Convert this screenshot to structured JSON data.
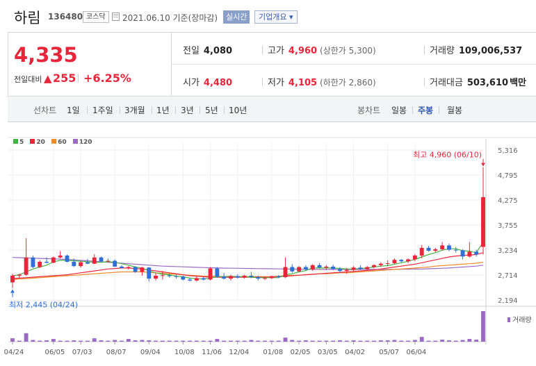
{
  "header": {
    "stock_name": "하림",
    "stock_code": "136480",
    "market": "코스닥",
    "date_text": "2021.06.10 기준(장마감)",
    "realtime_label": "실시간",
    "company_info_label": "기업개요 ▾"
  },
  "summary": {
    "current_price": "4,335",
    "diff_label": "전일대비",
    "diff_arrow": "▲",
    "diff_value": "255",
    "diff_rate": "+6.25%",
    "prev_close": {
      "label": "전일",
      "value": "4,080"
    },
    "high": {
      "label": "고가",
      "value": "4,960",
      "sub": "(상한가 5,300)"
    },
    "volume": {
      "label": "거래량",
      "value": "109,006,537"
    },
    "open": {
      "label": "시가",
      "value": "4,480"
    },
    "low": {
      "label": "저가",
      "value": "4,105",
      "sub": "(하한가 2,860)"
    },
    "amount": {
      "label": "거래대금",
      "value": "503,610",
      "unit": "백만"
    }
  },
  "period_bar": {
    "line_label": "선차트",
    "line_items": [
      "1일",
      "1주일",
      "3개월",
      "1년",
      "3년",
      "5년",
      "10년"
    ],
    "candle_label": "봉차트",
    "candle_items": [
      "일봉",
      "주봉",
      "월봉"
    ],
    "active_candle": "주봉"
  },
  "colors": {
    "up": "#e8253b",
    "down": "#2f6fd6",
    "ma5": "#44b244",
    "ma20": "#e8253b",
    "ma60": "#f08a24",
    "ma120": "#9b6bc4",
    "volume": "#9b6bc4"
  },
  "chart_data": {
    "type": "candlestick",
    "legend": [
      {
        "name": "5",
        "color": "#44b244"
      },
      {
        "name": "20",
        "color": "#e8253b"
      },
      {
        "name": "60",
        "color": "#f08a24"
      },
      {
        "name": "120",
        "color": "#9b6bc4"
      }
    ],
    "y_ticks": [
      "5,316",
      "4,795",
      "4,275",
      "3,755",
      "3,234",
      "2,714",
      "2,194"
    ],
    "ylim": [
      2194,
      5316
    ],
    "x_labels": [
      "04/24",
      "06/05",
      "07/03",
      "08/07",
      "09/04",
      "10/08",
      "11/06",
      "12/04",
      "01/08",
      "02/05",
      "03/05",
      "04/02",
      "05/07",
      "06/04"
    ],
    "max_annotation": "최고 4,960 (06/10)",
    "min_annotation": "최저 2,445 (04/24)",
    "volume_label": "거래량",
    "candles": [
      {
        "o": 2560,
        "h": 2740,
        "l": 2445,
        "c": 2700
      },
      {
        "o": 2700,
        "h": 2740,
        "l": 2650,
        "c": 2720
      },
      {
        "o": 2720,
        "h": 3480,
        "l": 2700,
        "c": 3080
      },
      {
        "o": 3080,
        "h": 3120,
        "l": 2860,
        "c": 2880
      },
      {
        "o": 2880,
        "h": 3020,
        "l": 2860,
        "c": 2990
      },
      {
        "o": 2990,
        "h": 3080,
        "l": 2960,
        "c": 2970
      },
      {
        "o": 2970,
        "h": 3100,
        "l": 2960,
        "c": 3080
      },
      {
        "o": 3080,
        "h": 3210,
        "l": 3060,
        "c": 3120
      },
      {
        "o": 3120,
        "h": 3140,
        "l": 2980,
        "c": 2990
      },
      {
        "o": 2990,
        "h": 3060,
        "l": 2880,
        "c": 2900
      },
      {
        "o": 2900,
        "h": 3000,
        "l": 2870,
        "c": 2980
      },
      {
        "o": 2980,
        "h": 3050,
        "l": 2940,
        "c": 2950
      },
      {
        "o": 2950,
        "h": 3150,
        "l": 2940,
        "c": 3080
      },
      {
        "o": 3080,
        "h": 3100,
        "l": 2980,
        "c": 3000
      },
      {
        "o": 3000,
        "h": 3060,
        "l": 2980,
        "c": 3010
      },
      {
        "o": 3010,
        "h": 3040,
        "l": 2880,
        "c": 2890
      },
      {
        "o": 2890,
        "h": 2920,
        "l": 2850,
        "c": 2860
      },
      {
        "o": 2860,
        "h": 2900,
        "l": 2830,
        "c": 2880
      },
      {
        "o": 2880,
        "h": 2900,
        "l": 2760,
        "c": 2780
      },
      {
        "o": 2780,
        "h": 2890,
        "l": 2700,
        "c": 2870
      },
      {
        "o": 2870,
        "h": 2880,
        "l": 2580,
        "c": 2640
      },
      {
        "o": 2640,
        "h": 2760,
        "l": 2600,
        "c": 2700
      },
      {
        "o": 2700,
        "h": 2800,
        "l": 2620,
        "c": 2710
      },
      {
        "o": 2710,
        "h": 2740,
        "l": 2660,
        "c": 2690
      },
      {
        "o": 2690,
        "h": 2720,
        "l": 2640,
        "c": 2680
      },
      {
        "o": 2680,
        "h": 2700,
        "l": 2600,
        "c": 2620
      },
      {
        "o": 2620,
        "h": 2660,
        "l": 2580,
        "c": 2600
      },
      {
        "o": 2600,
        "h": 2700,
        "l": 2580,
        "c": 2650
      },
      {
        "o": 2650,
        "h": 2670,
        "l": 2600,
        "c": 2620
      },
      {
        "o": 2620,
        "h": 2880,
        "l": 2600,
        "c": 2850
      },
      {
        "o": 2850,
        "h": 2880,
        "l": 2660,
        "c": 2680
      },
      {
        "o": 2680,
        "h": 2760,
        "l": 2620,
        "c": 2640
      },
      {
        "o": 2640,
        "h": 2720,
        "l": 2600,
        "c": 2690
      },
      {
        "o": 2690,
        "h": 2730,
        "l": 2640,
        "c": 2660
      },
      {
        "o": 2660,
        "h": 2720,
        "l": 2640,
        "c": 2700
      },
      {
        "o": 2700,
        "h": 2780,
        "l": 2650,
        "c": 2670
      },
      {
        "o": 2670,
        "h": 2700,
        "l": 2600,
        "c": 2640
      },
      {
        "o": 2640,
        "h": 2680,
        "l": 2610,
        "c": 2650
      },
      {
        "o": 2650,
        "h": 2700,
        "l": 2630,
        "c": 2690
      },
      {
        "o": 2690,
        "h": 2710,
        "l": 2650,
        "c": 2670
      },
      {
        "o": 2670,
        "h": 3080,
        "l": 2650,
        "c": 2880
      },
      {
        "o": 2880,
        "h": 2940,
        "l": 2760,
        "c": 2790
      },
      {
        "o": 2790,
        "h": 2900,
        "l": 2770,
        "c": 2880
      },
      {
        "o": 2880,
        "h": 2920,
        "l": 2800,
        "c": 2830
      },
      {
        "o": 2830,
        "h": 2940,
        "l": 2800,
        "c": 2920
      },
      {
        "o": 2920,
        "h": 2960,
        "l": 2850,
        "c": 2870
      },
      {
        "o": 2870,
        "h": 2920,
        "l": 2820,
        "c": 2890
      },
      {
        "o": 2890,
        "h": 2930,
        "l": 2820,
        "c": 2840
      },
      {
        "o": 2840,
        "h": 2880,
        "l": 2760,
        "c": 2800
      },
      {
        "o": 2800,
        "h": 2860,
        "l": 2740,
        "c": 2820
      },
      {
        "o": 2820,
        "h": 2900,
        "l": 2780,
        "c": 2870
      },
      {
        "o": 2870,
        "h": 2920,
        "l": 2820,
        "c": 2840
      },
      {
        "o": 2840,
        "h": 2900,
        "l": 2820,
        "c": 2880
      },
      {
        "o": 2880,
        "h": 2940,
        "l": 2850,
        "c": 2920
      },
      {
        "o": 2920,
        "h": 2980,
        "l": 2880,
        "c": 2950
      },
      {
        "o": 2950,
        "h": 3020,
        "l": 2900,
        "c": 2960
      },
      {
        "o": 2960,
        "h": 3060,
        "l": 2940,
        "c": 3030
      },
      {
        "o": 3030,
        "h": 3050,
        "l": 2980,
        "c": 3000
      },
      {
        "o": 3000,
        "h": 3060,
        "l": 2960,
        "c": 3040
      },
      {
        "o": 3040,
        "h": 3150,
        "l": 3000,
        "c": 3120
      },
      {
        "o": 3120,
        "h": 3340,
        "l": 3060,
        "c": 3280
      },
      {
        "o": 3280,
        "h": 3320,
        "l": 3200,
        "c": 3220
      },
      {
        "o": 3220,
        "h": 3280,
        "l": 3190,
        "c": 3250
      },
      {
        "o": 3250,
        "h": 3400,
        "l": 3220,
        "c": 3330
      },
      {
        "o": 3330,
        "h": 3370,
        "l": 3210,
        "c": 3240
      },
      {
        "o": 3240,
        "h": 3300,
        "l": 3180,
        "c": 3230
      },
      {
        "o": 3230,
        "h": 3250,
        "l": 3040,
        "c": 3100
      },
      {
        "o": 3100,
        "h": 3400,
        "l": 3080,
        "c": 3200
      },
      {
        "o": 3200,
        "h": 3240,
        "l": 3100,
        "c": 3140
      },
      {
        "o": 3300,
        "h": 4960,
        "l": 3140,
        "c": 4335
      }
    ],
    "ma5": [
      2700,
      2720,
      2780,
      2840,
      2880,
      2920,
      2990,
      3020,
      3020,
      3010,
      3000,
      2990,
      2980,
      2980,
      2990,
      2980,
      2950,
      2920,
      2880,
      2860,
      2800,
      2760,
      2730,
      2720,
      2690,
      2680,
      2650,
      2640,
      2630,
      2650,
      2680,
      2680,
      2690,
      2680,
      2680,
      2670,
      2660,
      2660,
      2660,
      2660,
      2720,
      2740,
      2780,
      2810,
      2860,
      2860,
      2860,
      2860,
      2850,
      2840,
      2840,
      2850,
      2860,
      2880,
      2900,
      2910,
      2940,
      2970,
      3000,
      3040,
      3090,
      3140,
      3180,
      3230,
      3260,
      3260,
      3220,
      3210,
      3180,
      3400
    ],
    "ma20": [
      2640,
      2650,
      2660,
      2670,
      2680,
      2690,
      2700,
      2710,
      2720,
      2740,
      2760,
      2780,
      2800,
      2820,
      2840,
      2850,
      2860,
      2860,
      2850,
      2840,
      2820,
      2800,
      2780,
      2760,
      2740,
      2720,
      2700,
      2690,
      2680,
      2670,
      2670,
      2670,
      2670,
      2670,
      2670,
      2670,
      2670,
      2670,
      2670,
      2680,
      2690,
      2700,
      2710,
      2720,
      2730,
      2740,
      2750,
      2760,
      2770,
      2780,
      2790,
      2800,
      2810,
      2820,
      2840,
      2860,
      2880,
      2900,
      2920,
      2940,
      2970,
      3000,
      3030,
      3060,
      3090,
      3110,
      3120,
      3130,
      3140,
      3180
    ],
    "ma60": [
      2620,
      2630,
      2640,
      2650,
      2660,
      2670,
      2680,
      2690,
      2700,
      2710,
      2720,
      2730,
      2740,
      2750,
      2760,
      2770,
      2780,
      2780,
      2780,
      2780,
      2770,
      2760,
      2750,
      2740,
      2730,
      2720,
      2710,
      2700,
      2690,
      2690,
      2690,
      2680,
      2680,
      2680,
      2680,
      2680,
      2680,
      2680,
      2680,
      2690,
      2700,
      2710,
      2710,
      2720,
      2730,
      2740,
      2740,
      2750,
      2760,
      2760,
      2770,
      2780,
      2790,
      2800,
      2810,
      2820,
      2830,
      2840,
      2850,
      2860,
      2870,
      2880,
      2900,
      2910,
      2920,
      2930,
      2940,
      2950,
      2960,
      2980
    ],
    "ma120": [
      3080,
      3075,
      3070,
      3065,
      3060,
      3055,
      3050,
      3045,
      3040,
      3030,
      3020,
      3010,
      3000,
      2990,
      2980,
      2970,
      2960,
      2950,
      2940,
      2930,
      2920,
      2910,
      2900,
      2895,
      2890,
      2885,
      2880,
      2875,
      2870,
      2865,
      2860,
      2858,
      2856,
      2854,
      2852,
      2850,
      2848,
      2846,
      2844,
      2842,
      2840,
      2838,
      2836,
      2834,
      2832,
      2830,
      2830,
      2830,
      2830,
      2830,
      2830,
      2830,
      2830,
      2830,
      2830,
      2830,
      2832,
      2834,
      2836,
      2838,
      2840,
      2845,
      2850,
      2855,
      2860,
      2870,
      2880,
      2890,
      2900,
      2920
    ],
    "volumes": [
      10,
      3,
      25,
      5,
      3,
      4,
      8,
      3,
      3,
      4,
      3,
      3,
      10,
      4,
      3,
      5,
      3,
      8,
      4,
      5,
      4,
      3,
      3,
      3,
      3,
      3,
      3,
      3,
      3,
      3,
      8,
      3,
      3,
      3,
      3,
      5,
      3,
      3,
      3,
      3,
      12,
      5,
      3,
      4,
      3,
      3,
      3,
      3,
      4,
      3,
      4,
      3,
      3,
      3,
      4,
      4,
      5,
      3,
      3,
      5,
      14,
      3,
      3,
      6,
      4,
      3,
      5,
      8,
      6,
      90
    ]
  }
}
